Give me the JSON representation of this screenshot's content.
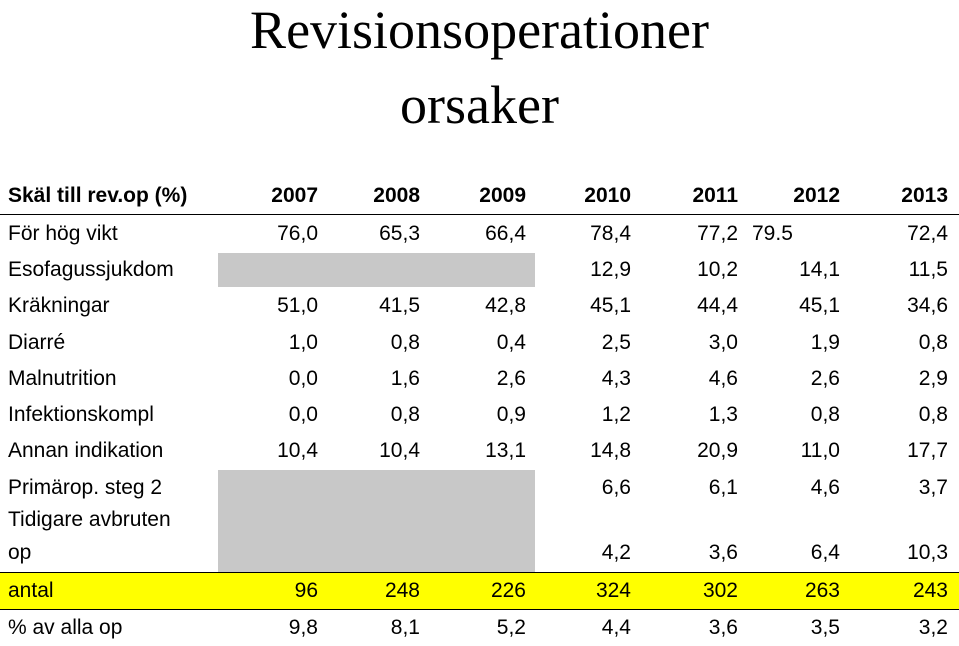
{
  "title_line1": "Revisionsoperationer",
  "title_line2": "orsaker",
  "header": [
    "Skäl till rev.op (%)",
    "2007",
    "2008",
    "2009",
    "2010",
    "2011",
    "2012",
    "2013"
  ],
  "rows": [
    {
      "label": "För hög vikt",
      "values": [
        "76,0",
        "65,3",
        "66,4",
        "78,4",
        "77,2",
        "",
        "72,4"
      ],
      "extra": "79.5"
    },
    {
      "label": "Esofagussjukdom",
      "values": [
        "",
        "",
        "",
        "12,9",
        "10,2",
        "14,1",
        "11,5"
      ]
    },
    {
      "label": "Kräkningar",
      "values": [
        "51,0",
        "41,5",
        "42,8",
        "45,1",
        "44,4",
        "45,1",
        "34,6"
      ]
    },
    {
      "label": "Diarré",
      "values": [
        "1,0",
        "0,8",
        "0,4",
        "2,5",
        "3,0",
        "1,9",
        "0,8"
      ]
    },
    {
      "label": "Malnutrition",
      "values": [
        "0,0",
        "1,6",
        "2,6",
        "4,3",
        "4,6",
        "2,6",
        "2,9"
      ]
    },
    {
      "label": "Infektionskompl",
      "values": [
        "0,0",
        "0,8",
        "0,9",
        "1,2",
        "1,3",
        "0,8",
        "0,8"
      ]
    },
    {
      "label": "Annan indikation",
      "values": [
        "10,4",
        "10,4",
        "13,1",
        "14,8",
        "20,9",
        "11,0",
        "17,7"
      ]
    },
    {
      "label": "Primärop. steg 2",
      "values": [
        "",
        "",
        "",
        "6,6",
        "6,1",
        "4,6",
        "3,7"
      ]
    },
    {
      "label": "Tidigare avbruten",
      "label2": "op",
      "values": [
        "",
        "",
        "",
        "4,2",
        "3,6",
        "6,4",
        "10,3"
      ]
    },
    {
      "label": "antal",
      "values": [
        "96",
        "248",
        "226",
        "324",
        "302",
        "263",
        "243"
      ]
    },
    {
      "label": "% av alla op",
      "values": [
        "9,8",
        "8,1",
        "5,2",
        "4,4",
        "3,6",
        "3,5",
        "3,2"
      ]
    }
  ],
  "colors": {
    "highlight": "#ffff00",
    "blank": "#c8c8c8"
  }
}
